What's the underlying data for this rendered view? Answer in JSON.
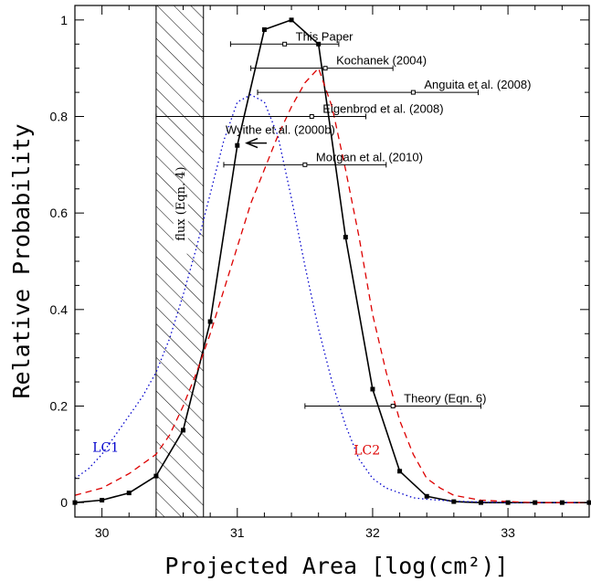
{
  "chart_data": {
    "type": "line",
    "xlabel": "Projected Area [log(cm²)]",
    "ylabel": "Relative Probability",
    "xlim": [
      29.8,
      33.6
    ],
    "ylim": [
      -0.03,
      1.03
    ],
    "x_ticks": [
      30,
      31,
      32,
      33
    ],
    "y_ticks": [
      0,
      0.2,
      0.4,
      0.6,
      0.8,
      1
    ],
    "grid": false,
    "series": [
      {
        "style": "solid-markers",
        "color": "#000000",
        "x": [
          29.8,
          30.0,
          30.2,
          30.4,
          30.6,
          30.8,
          31.0,
          31.2,
          31.4,
          31.6,
          31.8,
          32.0,
          32.2,
          32.4,
          32.6,
          32.8,
          33.0,
          33.2,
          33.4,
          33.6
        ],
        "y": [
          0.0,
          0.005,
          0.02,
          0.055,
          0.15,
          0.375,
          0.74,
          0.98,
          1.0,
          0.95,
          0.55,
          0.235,
          0.065,
          0.013,
          0.002,
          0.0,
          0.0,
          0.0,
          0.0,
          0.0
        ]
      },
      {
        "name": "LC1",
        "style": "dotted",
        "color": "#0000cc",
        "x": [
          29.8,
          29.9,
          30.0,
          30.1,
          30.2,
          30.3,
          30.4,
          30.5,
          30.6,
          30.7,
          30.8,
          30.9,
          31.0,
          31.1,
          31.2,
          31.3,
          31.4,
          31.5,
          31.6,
          31.7,
          31.8,
          31.9,
          32.0,
          32.1,
          32.2,
          32.3,
          32.4,
          32.6,
          32.8,
          33.0,
          33.6
        ],
        "y": [
          0.05,
          0.07,
          0.1,
          0.14,
          0.18,
          0.22,
          0.27,
          0.34,
          0.43,
          0.53,
          0.64,
          0.75,
          0.83,
          0.845,
          0.83,
          0.76,
          0.63,
          0.49,
          0.36,
          0.25,
          0.16,
          0.09,
          0.05,
          0.03,
          0.02,
          0.01,
          0.007,
          0.003,
          0.001,
          0.0,
          0.0
        ]
      },
      {
        "name": "LC2",
        "style": "dashed",
        "color": "#dd0000",
        "x": [
          29.8,
          30.0,
          30.2,
          30.4,
          30.5,
          30.6,
          30.7,
          30.8,
          30.9,
          31.0,
          31.1,
          31.2,
          31.3,
          31.4,
          31.5,
          31.6,
          31.7,
          31.8,
          31.9,
          32.0,
          32.1,
          32.2,
          32.3,
          32.4,
          32.5,
          32.6,
          32.8,
          33.0,
          33.2,
          33.6
        ],
        "y": [
          0.015,
          0.03,
          0.06,
          0.1,
          0.14,
          0.2,
          0.27,
          0.35,
          0.44,
          0.53,
          0.62,
          0.69,
          0.76,
          0.82,
          0.87,
          0.9,
          0.82,
          0.69,
          0.55,
          0.39,
          0.27,
          0.17,
          0.1,
          0.05,
          0.03,
          0.015,
          0.005,
          0.002,
          0.0,
          0.0
        ]
      }
    ],
    "series_labels": [
      {
        "text": "LC1",
        "x": 29.93,
        "y": 0.105,
        "color": "#0000cc"
      },
      {
        "text": "LC2",
        "x": 31.86,
        "y": 0.1,
        "color": "#dd0000"
      }
    ],
    "measurements": [
      {
        "label": "This Paper",
        "x": 31.35,
        "lo": 30.95,
        "hi": 31.75,
        "y": 0.95
      },
      {
        "label": "Kochanek (2004)",
        "x": 31.65,
        "lo": 31.1,
        "hi": 32.15,
        "y": 0.9
      },
      {
        "label": "Anguita et al. (2008)",
        "x": 32.3,
        "lo": 31.15,
        "hi": 32.78,
        "y": 0.85
      },
      {
        "label": "Eigenbrod et al. (2008)",
        "x": 31.55,
        "lo": 30.4,
        "hi": 31.95,
        "y": 0.8
      },
      {
        "label": "Morgan et al. (2010)",
        "x": 31.5,
        "lo": 30.9,
        "hi": 32.1,
        "y": 0.7
      },
      {
        "label": "Theory (Eqn. 6)",
        "x": 32.15,
        "lo": 31.5,
        "hi": 32.8,
        "y": 0.2
      }
    ],
    "upper_limit": {
      "label": "Wyithe et al. (2000b)",
      "x": 31.15,
      "y": 0.745
    },
    "hatched_region": {
      "label": "flux (Eqn. 4)",
      "x_from": 30.4,
      "x_to": 30.75
    }
  }
}
